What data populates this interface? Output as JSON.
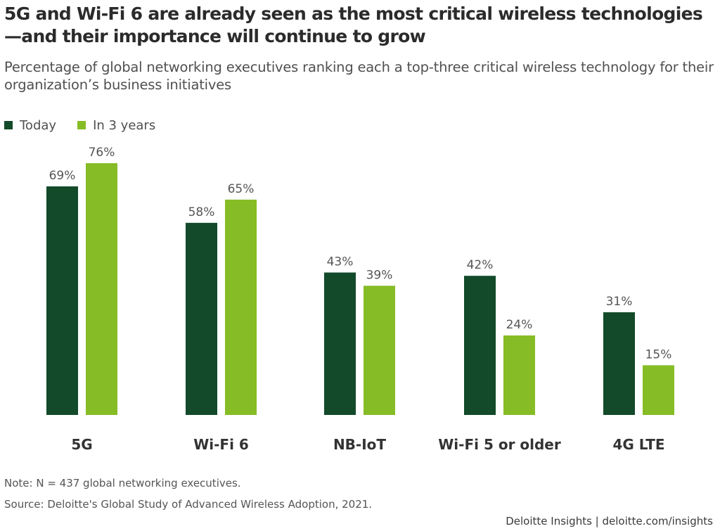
{
  "title": "5G and Wi-Fi 6 are already seen as the most critical wireless technologies—and their importance will continue to grow",
  "subtitle": "Percentage of global networking executives ranking each a top-three critical wireless technology for their organization’s business initiatives",
  "legend": {
    "today": "Today",
    "in3": "In 3 years"
  },
  "colors": {
    "today": "#124a2a",
    "in3": "#86bc25"
  },
  "note": "Note: N = 437 global networking executives.",
  "source": "Source: Deloitte's Global Study of Advanced Wireless Adoption, 2021.",
  "footer": "Deloitte Insights | deloitte.com/insights",
  "chart_data": {
    "type": "bar",
    "title": "5G and Wi-Fi 6 are already seen as the most critical wireless technologies—and their importance will continue to grow",
    "categories": [
      "5G",
      "Wi-Fi 6",
      "NB-IoT",
      "Wi-Fi 5 or older",
      "4G LTE"
    ],
    "series": [
      {
        "name": "Today",
        "values": [
          69,
          58,
          43,
          42,
          31
        ],
        "labels": [
          "69%",
          "58%",
          "43%",
          "42%",
          "31%"
        ]
      },
      {
        "name": "In 3 years",
        "values": [
          76,
          65,
          39,
          24,
          15
        ],
        "labels": [
          "76%",
          "65%",
          "39%",
          "24%",
          "15%"
        ]
      }
    ],
    "xlabel": "",
    "ylabel": "",
    "ylim": [
      0,
      100
    ],
    "grid": false,
    "legend": "top-left"
  }
}
